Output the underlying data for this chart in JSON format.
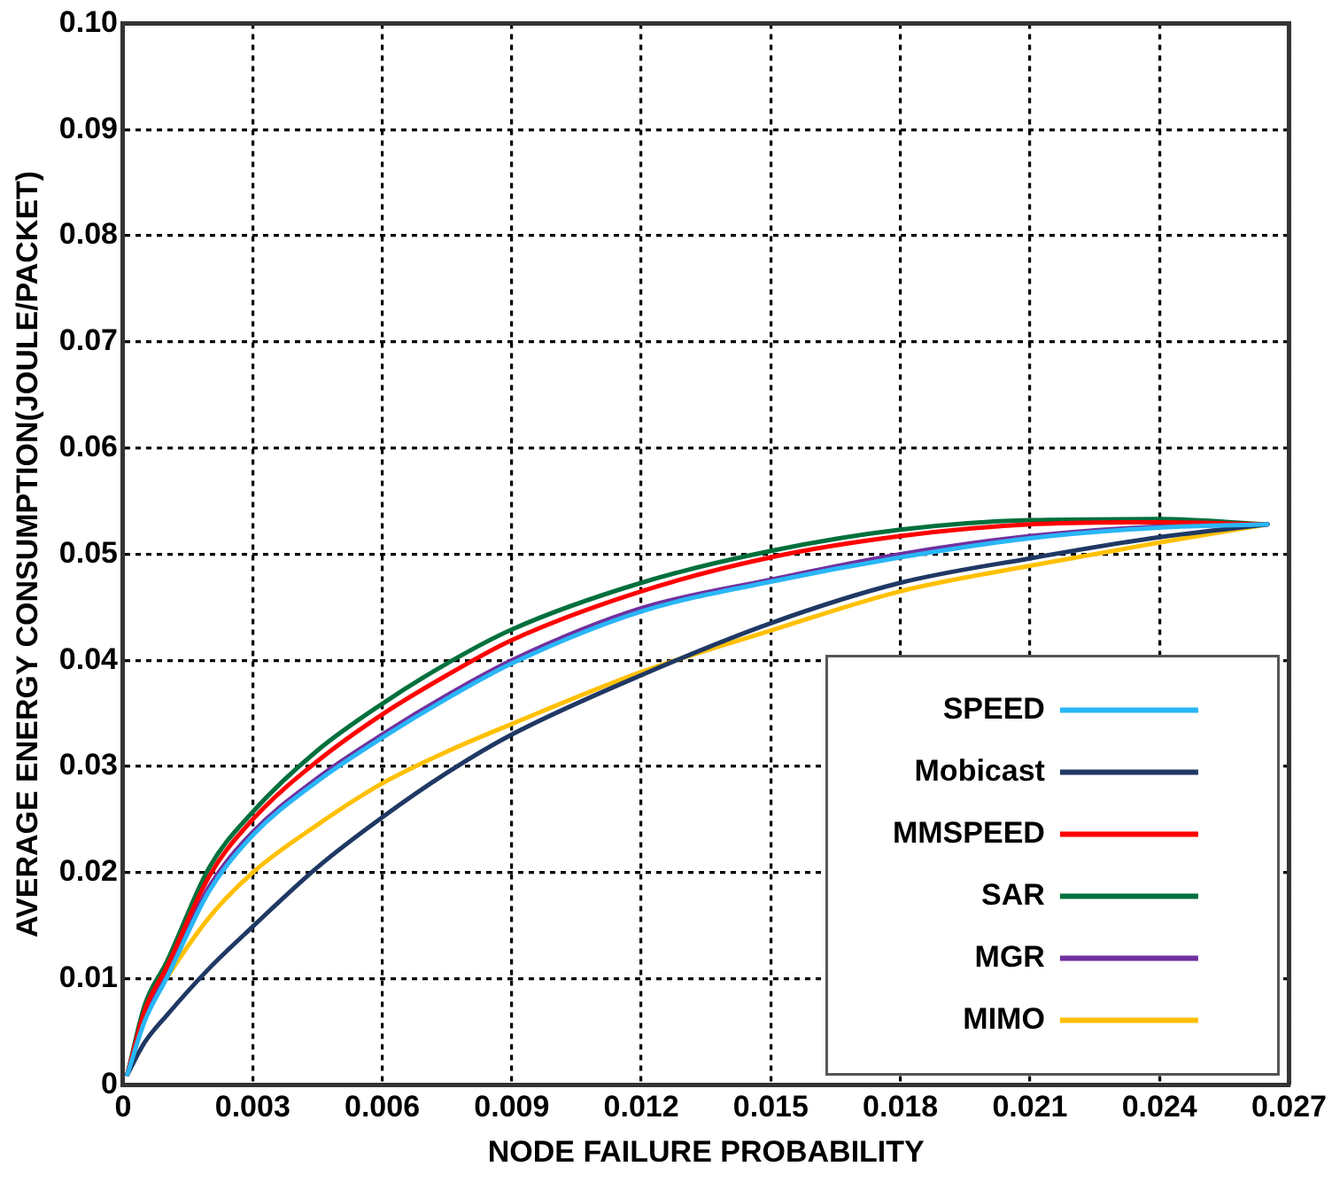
{
  "chart_data": {
    "type": "line",
    "xlabel": "NODE FAILURE PROBABILITY",
    "ylabel": "AVERAGE ENERGY CONSUMPTION(JOULE/PACKET)",
    "x": [
      0.0001,
      0.0005,
      0.001,
      0.002,
      0.003,
      0.0045,
      0.006,
      0.0075,
      0.009,
      0.012,
      0.015,
      0.018,
      0.021,
      0.024,
      0.0265
    ],
    "series": [
      {
        "name": "SPEED",
        "color": "#29b6f6",
        "values": [
          0.001,
          0.006,
          0.01,
          0.0183,
          0.0235,
          0.0286,
          0.0327,
          0.0364,
          0.0397,
          0.0446,
          0.0474,
          0.0497,
          0.0515,
          0.0525,
          0.0528
        ]
      },
      {
        "name": "Mobicast",
        "color": "#1f3864",
        "values": [
          0.001,
          0.004,
          0.0065,
          0.011,
          0.0149,
          0.0205,
          0.0252,
          0.0294,
          0.033,
          0.0386,
          0.0435,
          0.0473,
          0.0496,
          0.0516,
          0.0528
        ]
      },
      {
        "name": "MMSPEED",
        "color": "#ff0000",
        "values": [
          0.001,
          0.007,
          0.011,
          0.0197,
          0.025,
          0.0305,
          0.0349,
          0.0386,
          0.0419,
          0.0465,
          0.0497,
          0.0517,
          0.0528,
          0.053,
          0.0528
        ]
      },
      {
        "name": "SAR",
        "color": "#00703c",
        "values": [
          0.001,
          0.0075,
          0.0115,
          0.0205,
          0.0257,
          0.0315,
          0.0359,
          0.0397,
          0.0429,
          0.0473,
          0.0503,
          0.0523,
          0.0532,
          0.0533,
          0.0528
        ]
      },
      {
        "name": "MGR",
        "color": "#7030a0",
        "values": [
          0.001,
          0.0065,
          0.0105,
          0.0187,
          0.0238,
          0.0289,
          0.033,
          0.0367,
          0.04,
          0.0449,
          0.0476,
          0.05,
          0.0517,
          0.0526,
          0.0528
        ]
      },
      {
        "name": "MIMO",
        "color": "#ffc000",
        "values": [
          0.001,
          0.0065,
          0.01,
          0.0158,
          0.02,
          0.0245,
          0.0284,
          0.0314,
          0.034,
          0.0389,
          0.0428,
          0.0465,
          0.0489,
          0.0511,
          0.0528
        ]
      }
    ],
    "xlim": [
      0,
      0.027
    ],
    "xticks": [
      0,
      0.003,
      0.006,
      0.009,
      0.012,
      0.015,
      0.018,
      0.021,
      0.024,
      0.027
    ],
    "ylim": [
      0,
      0.1
    ],
    "yticks": [
      0,
      0.01,
      0.02,
      0.03,
      0.04,
      0.05,
      0.06,
      0.07,
      0.08,
      0.09,
      {
        "value": 0.1,
        "label": "0.10"
      }
    ],
    "grid": true,
    "legend": "bottom right",
    "marker": "none",
    "line_style": "solid"
  }
}
